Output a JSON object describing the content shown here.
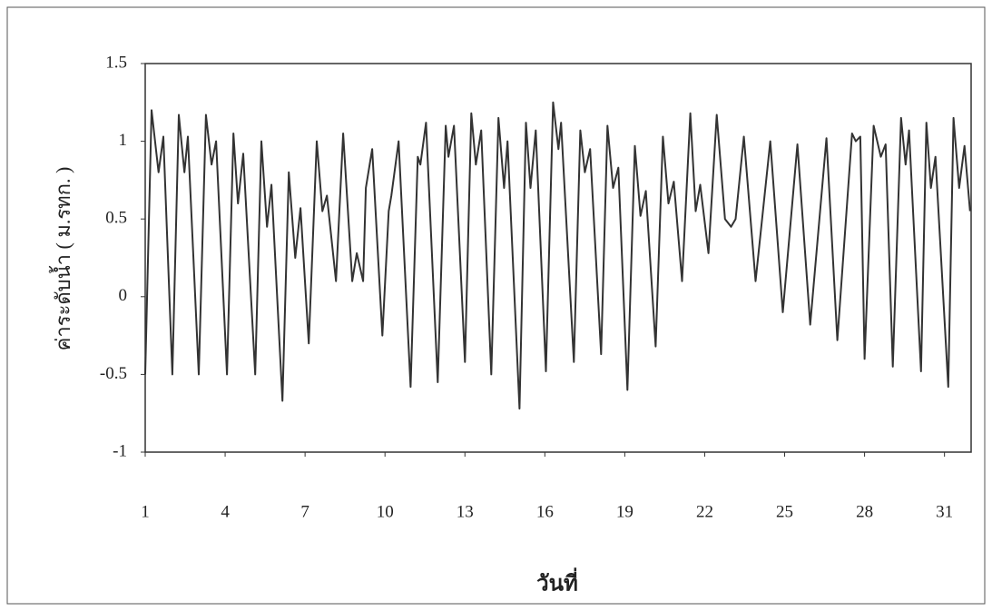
{
  "chart_data": {
    "type": "line",
    "xlabel": "วันที่",
    "ylabel": "ค่าระดับน้ำ ( ม.รทก. )",
    "color": "#333333",
    "xlim": [
      1,
      32
    ],
    "xticks": [
      1,
      4,
      7,
      10,
      13,
      16,
      19,
      22,
      25,
      28,
      31
    ],
    "ylim": [
      -1,
      1.5
    ],
    "yticks": [
      -1,
      -0.5,
      0,
      0.5,
      1,
      1.5
    ],
    "grid": false,
    "x": [
      1.0,
      1.24,
      1.5,
      1.68,
      2.02,
      2.26,
      2.47,
      2.6,
      3.01,
      3.28,
      3.49,
      3.66,
      4.07,
      4.31,
      4.48,
      4.68,
      5.13,
      5.36,
      5.57,
      5.74,
      6.15,
      6.39,
      6.63,
      6.83,
      7.14,
      7.44,
      7.65,
      7.82,
      8.16,
      8.43,
      8.77,
      8.94,
      9.18,
      9.28,
      9.52,
      9.9,
      10.14,
      10.24,
      10.51,
      10.96,
      11.23,
      11.33,
      11.54,
      11.98,
      12.28,
      12.38,
      12.59,
      13.0,
      13.24,
      13.41,
      13.61,
      13.99,
      14.26,
      14.47,
      14.6,
      15.05,
      15.29,
      15.46,
      15.66,
      16.04,
      16.31,
      16.51,
      16.61,
      17.09,
      17.33,
      17.5,
      17.7,
      18.11,
      18.35,
      18.56,
      18.76,
      19.1,
      19.38,
      19.59,
      19.79,
      20.16,
      20.43,
      20.64,
      20.84,
      21.15,
      21.46,
      21.66,
      21.83,
      22.14,
      22.45,
      22.76,
      22.99,
      23.16,
      23.47,
      23.91,
      24.46,
      24.93,
      25.48,
      25.96,
      26.57,
      26.98,
      27.53,
      27.67,
      27.84,
      28.0,
      28.34,
      28.61,
      28.79,
      29.06,
      29.37,
      29.54,
      29.67,
      30.12,
      30.32,
      30.49,
      30.66,
      31.14,
      31.34,
      31.55,
      31.75,
      31.96
    ],
    "values": [
      -0.5,
      1.2,
      0.8,
      1.03,
      -0.5,
      1.17,
      0.8,
      1.03,
      -0.5,
      1.17,
      0.85,
      1.0,
      -0.5,
      1.05,
      0.6,
      0.92,
      -0.5,
      1.0,
      0.45,
      0.72,
      -0.67,
      0.8,
      0.25,
      0.57,
      -0.3,
      1.0,
      0.55,
      0.65,
      0.1,
      1.05,
      0.1,
      0.28,
      0.1,
      0.7,
      0.95,
      -0.25,
      0.55,
      0.65,
      1.0,
      -0.58,
      0.9,
      0.85,
      1.12,
      -0.55,
      1.1,
      0.9,
      1.1,
      -0.42,
      1.18,
      0.85,
      1.07,
      -0.5,
      1.15,
      0.7,
      1.0,
      -0.72,
      1.12,
      0.7,
      1.07,
      -0.48,
      1.25,
      0.95,
      1.12,
      -0.42,
      1.07,
      0.8,
      0.95,
      -0.37,
      1.1,
      0.7,
      0.83,
      -0.6,
      0.97,
      0.52,
      0.68,
      -0.32,
      1.03,
      0.6,
      0.74,
      0.1,
      1.18,
      0.55,
      0.72,
      0.28,
      1.17,
      0.5,
      0.45,
      0.5,
      1.03,
      0.1,
      1.0,
      -0.1,
      0.98,
      -0.18,
      1.02,
      -0.28,
      1.05,
      1.0,
      1.03,
      -0.4,
      1.1,
      0.9,
      0.98,
      -0.45,
      1.15,
      0.85,
      1.07,
      -0.48,
      1.12,
      0.7,
      0.9,
      -0.58,
      1.15,
      0.7,
      0.97,
      0.55
    ]
  }
}
